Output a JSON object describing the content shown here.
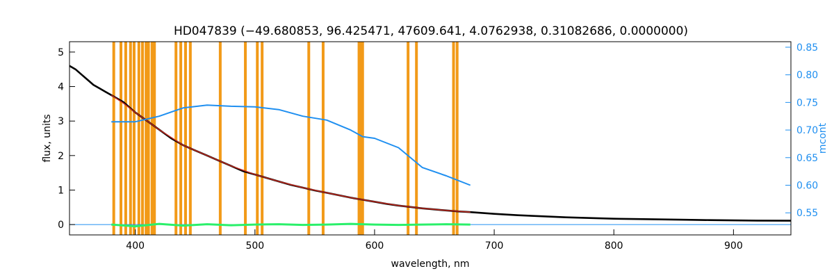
{
  "chart_data": {
    "type": "line",
    "title": "HD047839   (−49.680853, 96.425471, 47609.641, 4.0762938, 0.31082686, 0.0000000)",
    "xlabel": "wavelength, nm",
    "ylabel": "flux, units",
    "ylabel_right": "mcont",
    "xlim": [
      345,
      948
    ],
    "ylim": [
      -0.3,
      5.3
    ],
    "ylim_right": [
      0.51,
      0.86
    ],
    "xticks": [
      400,
      500,
      600,
      700,
      800,
      900
    ],
    "yticks": [
      0,
      1,
      2,
      3,
      4,
      5
    ],
    "yticks_right": [
      "0.55",
      "0.60",
      "0.65",
      "0.70",
      "0.75",
      "0.80",
      "0.85"
    ],
    "grid": false,
    "colors": {
      "observed": "#000000",
      "model": "#c0281e",
      "residual": "#2af06a",
      "mcont": "#1f8ff0",
      "masks": "#f29a18",
      "right_axis": "#1f8ff0"
    },
    "mask_lines": [
      382,
      388,
      392,
      396,
      399,
      403,
      406,
      409,
      411,
      414,
      416,
      434,
      438,
      442,
      446,
      471,
      492,
      502,
      506,
      545,
      557,
      587,
      589,
      590,
      628,
      635,
      666,
      669
    ],
    "series": [
      {
        "role": "observed",
        "x": [
          345,
          350,
          355,
          360,
          365,
          370,
          375,
          380,
          385,
          390,
          395,
          400,
          410,
          420,
          430,
          440,
          450,
          460,
          470,
          480,
          490,
          500,
          510,
          520,
          530,
          540,
          550,
          560,
          570,
          580,
          590,
          600,
          610,
          620,
          630,
          640,
          650,
          660,
          670,
          680,
          700,
          720,
          740,
          760,
          780,
          800,
          820,
          840,
          860,
          880,
          900,
          920,
          948
        ],
        "y": [
          4.6,
          4.5,
          4.35,
          4.2,
          4.05,
          3.95,
          3.85,
          3.75,
          3.65,
          3.55,
          3.4,
          3.25,
          3.0,
          2.75,
          2.5,
          2.3,
          2.15,
          2.0,
          1.85,
          1.7,
          1.55,
          1.45,
          1.35,
          1.25,
          1.15,
          1.07,
          0.99,
          0.92,
          0.85,
          0.78,
          0.72,
          0.66,
          0.6,
          0.55,
          0.51,
          0.47,
          0.44,
          0.41,
          0.38,
          0.36,
          0.31,
          0.27,
          0.24,
          0.21,
          0.19,
          0.17,
          0.16,
          0.15,
          0.14,
          0.13,
          0.12,
          0.115,
          0.11
        ]
      },
      {
        "role": "model",
        "x": [
          380,
          390,
          400,
          410,
          420,
          440,
          460,
          480,
          500,
          520,
          540,
          560,
          580,
          600,
          620,
          640,
          660,
          680
        ],
        "y": [
          3.75,
          3.52,
          3.25,
          3.0,
          2.75,
          2.3,
          2.0,
          1.7,
          1.45,
          1.25,
          1.07,
          0.92,
          0.78,
          0.66,
          0.55,
          0.47,
          0.41,
          0.36
        ]
      },
      {
        "role": "residual",
        "x": [
          380,
          400,
          420,
          440,
          460,
          480,
          500,
          520,
          540,
          560,
          580,
          600,
          620,
          640,
          660,
          680
        ],
        "y": [
          0.0,
          -0.05,
          0.02,
          -0.03,
          0.01,
          -0.02,
          0.0,
          0.01,
          -0.01,
          0.0,
          0.02,
          0.0,
          -0.01,
          0.0,
          0.01,
          0.0
        ]
      },
      {
        "role": "mcont",
        "x": [
          380,
          400,
          420,
          440,
          460,
          480,
          500,
          520,
          540,
          560,
          580,
          590,
          600,
          620,
          640,
          660,
          680
        ],
        "y": [
          0.715,
          0.715,
          0.725,
          0.74,
          0.745,
          0.743,
          0.742,
          0.737,
          0.725,
          0.718,
          0.7,
          0.688,
          0.685,
          0.668,
          0.632,
          0.617,
          0.6
        ]
      }
    ],
    "zero_line": {
      "from_x": 345,
      "to_x": 948,
      "y": 0
    }
  }
}
